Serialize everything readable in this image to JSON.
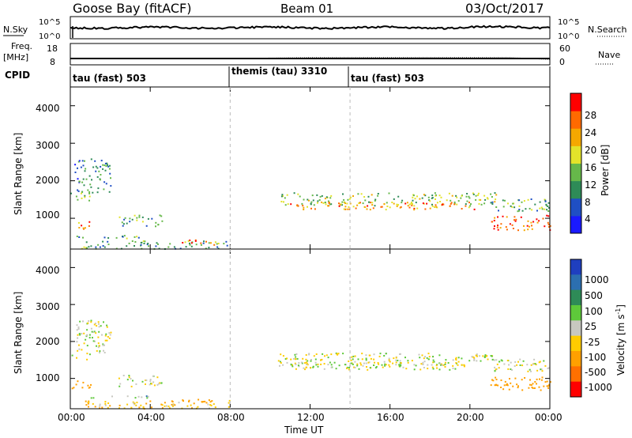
{
  "header": {
    "station": "Goose Bay (fitACF)",
    "beam": "Beam 01",
    "date": "03/Oct/2017"
  },
  "noise_panel": {
    "left_label": "N.Sky",
    "left_ticks": [
      "10^5",
      "10^0"
    ],
    "right_label": "N.Search",
    "right_ticks": [
      "10^5",
      "10^0"
    ]
  },
  "freq_panel": {
    "left_label_1": "Freq.",
    "left_label_2": "[MHz]",
    "left_ticks": [
      "18",
      "8"
    ],
    "right_label": "Nave",
    "right_ticks": [
      "60",
      "0"
    ]
  },
  "cpid": {
    "label": "CPID",
    "segments": [
      {
        "name": "tau (fast) 503",
        "start_hour": 0.0,
        "end_hour": 8.0
      },
      {
        "name": "themis (tau) 3310",
        "start_hour": 8.0,
        "end_hour": 14.0
      },
      {
        "name": "tau (fast) 503",
        "start_hour": 14.0,
        "end_hour": 24.0
      }
    ]
  },
  "colorbars": {
    "power": {
      "label": "Power [dB]",
      "ticks": [
        "28",
        "24",
        "20",
        "16",
        "12",
        "8",
        "4"
      ],
      "colors": [
        "#1a1aff",
        "#1f4fc4",
        "#2e8b57",
        "#66b84a",
        "#e3e32a",
        "#f5a800",
        "#ff6a00",
        "#ff0000"
      ]
    },
    "velocity": {
      "label": "Velocity [m s",
      "label_sup": "-1",
      "label_end": "]",
      "ticks": [
        "1000",
        "500",
        "100",
        "25",
        "-25",
        "-100",
        "-500",
        "-1000"
      ],
      "colors": [
        "#1f3fbf",
        "#2c6fb0",
        "#2e8b57",
        "#5ec93a",
        "#c8c8c0",
        "#ffcc00",
        "#ffa000",
        "#ff7000",
        "#ff0000"
      ]
    }
  },
  "axes": {
    "ylabel": "Slant Range [km]",
    "yticks": [
      "4000",
      "3000",
      "2000",
      "1000"
    ],
    "xticks": [
      "00:00",
      "04:00",
      "08:00",
      "12:00",
      "16:00",
      "20:00",
      "00:00"
    ],
    "xlabel": "Time UT"
  },
  "chart_data": {
    "type": "heatmap",
    "x_unit": "hours UT",
    "y_unit": "km",
    "xlim": [
      0,
      24
    ],
    "ylim": [
      180,
      4500
    ],
    "yticks": [
      1000,
      2000,
      3000,
      4000
    ],
    "xticks": [
      0,
      4,
      8,
      12,
      16,
      20,
      24
    ],
    "power_scale_dB": [
      0,
      30
    ],
    "velocity_scale": [
      -1000,
      1000
    ],
    "echo_regions": [
      {
        "x": [
          0.0,
          1.0
        ],
        "y": [
          1480,
          1700
        ],
        "power": 14,
        "velocity": 0
      },
      {
        "x": [
          0.0,
          1.0
        ],
        "y": [
          700,
          950
        ],
        "power": 22,
        "velocity": -300
      },
      {
        "x": [
          0.2,
          2.0
        ],
        "y": [
          1700,
          2600
        ],
        "power": 8,
        "velocity": 0
      },
      {
        "x": [
          0.2,
          4.0
        ],
        "y": [
          480,
          560
        ],
        "power": 10,
        "velocity": 50
      },
      {
        "x": [
          2.4,
          4.6
        ],
        "y": [
          800,
          1100
        ],
        "power": 12,
        "velocity": 0
      },
      {
        "x": [
          0.5,
          8.0
        ],
        "y": [
          200,
          420
        ],
        "power": 10,
        "velocity": -80
      },
      {
        "x": [
          5.5,
          7.2
        ],
        "y": [
          300,
          450
        ],
        "power": 22,
        "velocity": -200
      },
      {
        "x": [
          10.3,
          21.5
        ],
        "y": [
          1350,
          1700
        ],
        "power": 14,
        "velocity": 0
      },
      {
        "x": [
          11.0,
          20.5
        ],
        "y": [
          1250,
          1450
        ],
        "power": 22,
        "velocity": 0
      },
      {
        "x": [
          21.0,
          24.0
        ],
        "y": [
          700,
          1100
        ],
        "power": 25,
        "velocity": -400
      },
      {
        "x": [
          21.0,
          24.0
        ],
        "y": [
          1200,
          1550
        ],
        "power": 12,
        "velocity": 0
      }
    ]
  }
}
